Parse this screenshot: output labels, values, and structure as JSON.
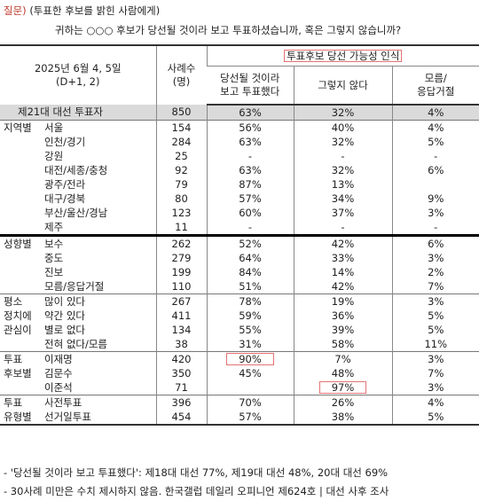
{
  "question": {
    "tag": "질문)",
    "line1": "(투표한 후보를 밝힌 사람에게)",
    "line2": "귀하는 ○○○ 후보가 당선될 것이라 보고 투표하셨습니까, 혹은 그렇지 않습니까?"
  },
  "header": {
    "survey": "2025년 6월 4, 5일",
    "period": "(D+1, 2)",
    "count": "사례수",
    "count_unit": "(명)",
    "group": "투표후보 당선 가능성 인식",
    "col1": "당선될 것이라",
    "col1b": "보고 투표했다",
    "col2": "그렇지 않다",
    "col3": "모름/",
    "col3b": "응답거절"
  },
  "rows": [
    {
      "cat": "",
      "label": "제21대 대선 투표자",
      "n": "850",
      "yes": "63%",
      "no": "32%",
      "dk": "4%"
    },
    {
      "cat": "지역별",
      "label": "서울",
      "n": "154",
      "yes": "56%",
      "no": "40%",
      "dk": "4%"
    },
    {
      "cat": "",
      "label": "인천/경기",
      "n": "284",
      "yes": "63%",
      "no": "32%",
      "dk": "5%"
    },
    {
      "cat": "",
      "label": "강원",
      "n": "25",
      "yes": "-",
      "no": "-",
      "dk": "-"
    },
    {
      "cat": "",
      "label": "대전/세종/충청",
      "n": "92",
      "yes": "63%",
      "no": "32%",
      "dk": "6%"
    },
    {
      "cat": "",
      "label": "광주/전라",
      "n": "79",
      "yes": "87%",
      "no": "13%",
      "dk": ""
    },
    {
      "cat": "",
      "label": "대구/경북",
      "n": "80",
      "yes": "57%",
      "no": "34%",
      "dk": "9%"
    },
    {
      "cat": "",
      "label": "부산/울산/경남",
      "n": "123",
      "yes": "60%",
      "no": "37%",
      "dk": "3%"
    },
    {
      "cat": "",
      "label": "제주",
      "n": "11",
      "yes": "-",
      "no": "-",
      "dk": "-"
    },
    {
      "cat": "성향별",
      "label": "보수",
      "n": "262",
      "yes": "52%",
      "no": "42%",
      "dk": "6%"
    },
    {
      "cat": "",
      "label": "중도",
      "n": "279",
      "yes": "64%",
      "no": "33%",
      "dk": "3%"
    },
    {
      "cat": "",
      "label": "진보",
      "n": "199",
      "yes": "84%",
      "no": "14%",
      "dk": "2%"
    },
    {
      "cat": "",
      "label": "모름/응답거절",
      "n": "110",
      "yes": "51%",
      "no": "42%",
      "dk": "7%"
    },
    {
      "cat": "평소",
      "label": "많이 있다",
      "n": "267",
      "yes": "78%",
      "no": "19%",
      "dk": "3%"
    },
    {
      "cat": "정치에",
      "label": "약간 있다",
      "n": "411",
      "yes": "59%",
      "no": "36%",
      "dk": "5%"
    },
    {
      "cat": "관심이",
      "label": "별로 없다",
      "n": "134",
      "yes": "55%",
      "no": "39%",
      "dk": "5%"
    },
    {
      "cat": "",
      "label": "전혀 없다/모름",
      "n": "38",
      "yes": "31%",
      "no": "58%",
      "dk": "11%"
    },
    {
      "cat": "투표",
      "label": "이재명",
      "n": "420",
      "yes": "90%",
      "no": "7%",
      "dk": "3%"
    },
    {
      "cat": "후보별",
      "label": "김문수",
      "n": "350",
      "yes": "45%",
      "no": "48%",
      "dk": "7%"
    },
    {
      "cat": "",
      "label": "이준석",
      "n": "71",
      "yes": "",
      "no": "97%",
      "dk": "3%"
    },
    {
      "cat": "투표",
      "label": "사전투표",
      "n": "396",
      "yes": "70%",
      "no": "26%",
      "dk": "4%"
    },
    {
      "cat": "유형별",
      "label": "선거일투표",
      "n": "454",
      "yes": "57%",
      "no": "38%",
      "dk": "5%"
    }
  ],
  "footnotes": {
    "f1": "- '당선될 것이라 보고 투표했다': 제18대 대선 77%, 제19대 대선 48%, 20대 대선 69%",
    "f2": "- 30사례 미만은 수치 제시하지 않음. 한국갤럽 데일리 오피니언 제624호 | 대선 사후 조사"
  },
  "colors": {
    "highlight": "#e57373",
    "question_tag": "#c0392b",
    "total_row_bg": "#dadada"
  }
}
